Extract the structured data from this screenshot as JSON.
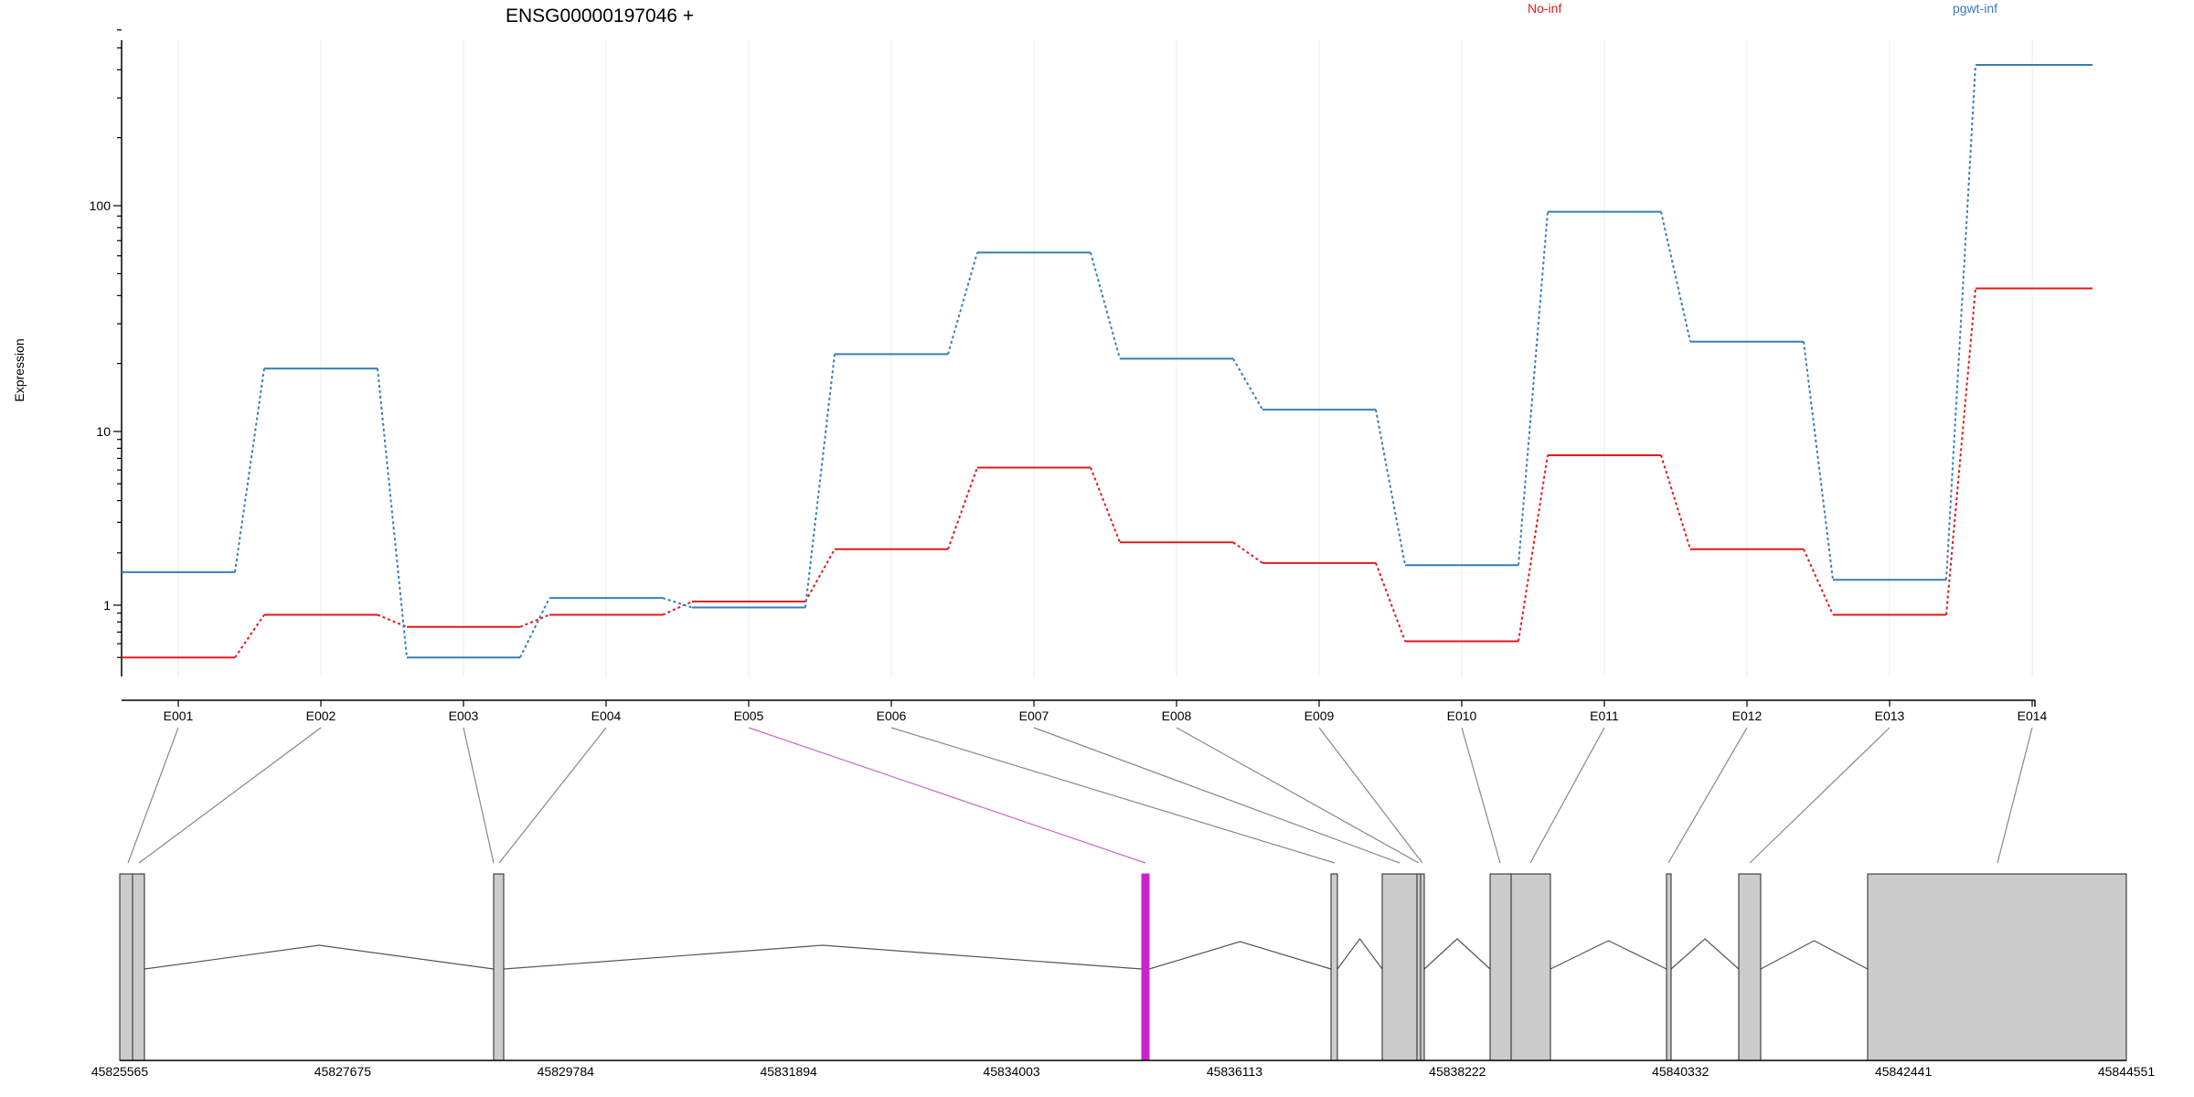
{
  "chart_data": {
    "type": "line",
    "title": "ENSG00000197046 +",
    "xlabel": "",
    "ylabel": "Expression",
    "y_scale": "log",
    "ylim": [
      0.5,
      600
    ],
    "y_ticks": [
      {
        "value": 1,
        "label": "1"
      },
      {
        "value": 10,
        "label": "10"
      },
      {
        "value": 100,
        "label": "100"
      }
    ],
    "grid": true,
    "legend_position": "top",
    "categories": [
      "E001",
      "E002",
      "E003",
      "E004",
      "E005",
      "E006",
      "E007",
      "E008",
      "E009",
      "E010",
      "E011",
      "E012",
      "E013",
      "E014"
    ],
    "series": [
      {
        "name": "No-inf",
        "color": "#e31a1c",
        "values": [
          0.5,
          0.88,
          0.75,
          0.88,
          1.05,
          2.1,
          6.2,
          2.3,
          1.75,
          0.62,
          7.3,
          2.1,
          0.88,
          43
        ]
      },
      {
        "name": "pgwt-inf",
        "color": "#377eb8",
        "values": [
          1.55,
          19,
          0.5,
          1.1,
          0.97,
          22,
          62,
          21,
          12.5,
          1.7,
          94,
          25,
          1.4,
          420
        ]
      }
    ],
    "gene_model": {
      "coordinate_ticks": [
        "45825565",
        "45827675",
        "45829784",
        "45831894",
        "45834003",
        "45836113",
        "45838222",
        "45840332",
        "45842441",
        "45844551"
      ],
      "highlight_exon": "E005",
      "highlight_color": "#cc22cc",
      "exon_color": "#cccccc"
    }
  }
}
